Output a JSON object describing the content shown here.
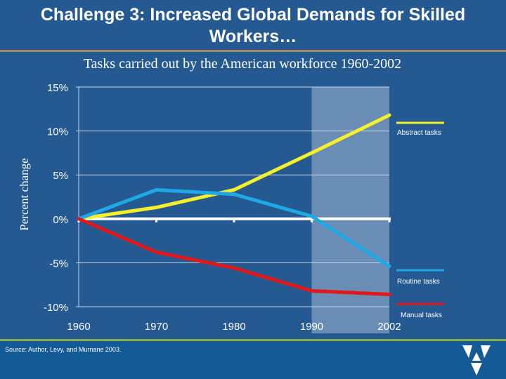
{
  "title": "Challenge 3: Increased Global Demands for Skilled Workers…",
  "subtitle": "Tasks carried out by the American workforce 1960-2002",
  "source": "Source: Author, Levy, and Murnane 2003.",
  "chart_data": {
    "type": "line",
    "title": "Tasks carried out by the American workforce 1960-2002",
    "xlabel": "",
    "ylabel": "Percent change",
    "categories": [
      "1960",
      "1970",
      "1980",
      "1990",
      "2002"
    ],
    "ylim": [
      -10,
      15
    ],
    "yticks": [
      "15%",
      "10%",
      "5%",
      "0%",
      "-5%",
      "-10%"
    ],
    "ytick_values": [
      15,
      10,
      5,
      0,
      -5,
      -10
    ],
    "grid": true,
    "legend": "right",
    "highlight_range": [
      "1990",
      "2002"
    ],
    "series": [
      {
        "name": "Abstract tasks",
        "color": "#f5f02a",
        "values": [
          0,
          1.3,
          3.3,
          7.5,
          11.8
        ]
      },
      {
        "name": "Routine tasks",
        "color": "#1ea8e6",
        "values": [
          0,
          3.3,
          2.8,
          0.3,
          -5.4
        ]
      },
      {
        "name": "Manual tasks",
        "color": "#e01818",
        "values": [
          0,
          -3.8,
          -5.6,
          -8.2,
          -8.6
        ]
      }
    ]
  }
}
